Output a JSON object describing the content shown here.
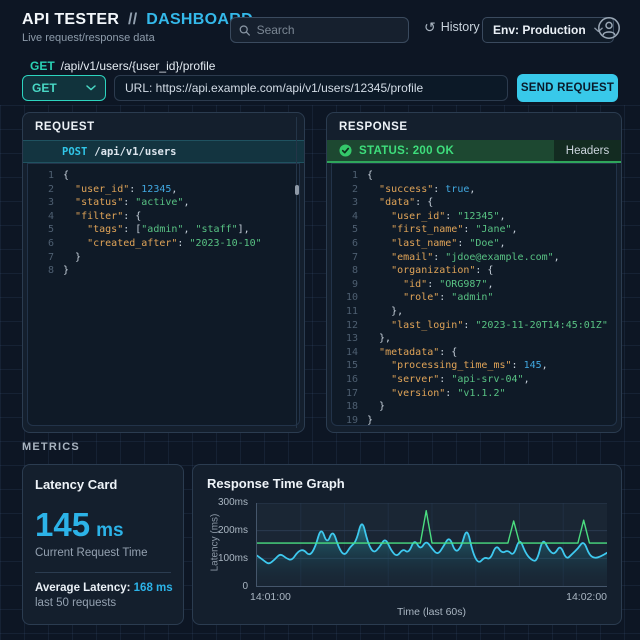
{
  "header": {
    "title_main": "API TESTER",
    "title_sep": "//",
    "title_accent": "DASHBOARD",
    "subtitle": "Live request/response data",
    "search_placeholder": "Search",
    "history_label": "History",
    "env_label": "Env: Production"
  },
  "request_bar": {
    "breadcrumb_method": "GET",
    "breadcrumb_path": "/api/v1/users/{user_id}/profile",
    "method_value": "GET",
    "url_value": "URL: https://api.example.com/api/v1/users/12345/profile",
    "send_label": "SEND REQUEST"
  },
  "request_panel": {
    "title": "REQUEST",
    "endpoint_method": "POST",
    "endpoint_path": "/api/v1/users",
    "code": [
      [
        [
          "p",
          "{"
        ]
      ],
      [
        [
          "p",
          "  "
        ],
        [
          "k",
          "\"user_id\""
        ],
        [
          "p",
          ": "
        ],
        [
          "n",
          "12345"
        ],
        [
          "p",
          ","
        ]
      ],
      [
        [
          "p",
          "  "
        ],
        [
          "k",
          "\"status\""
        ],
        [
          "p",
          ": "
        ],
        [
          "s",
          "\"active\""
        ],
        [
          "p",
          ","
        ]
      ],
      [
        [
          "p",
          "  "
        ],
        [
          "k",
          "\"filter\""
        ],
        [
          "p",
          ": {"
        ]
      ],
      [
        [
          "p",
          "    "
        ],
        [
          "k",
          "\"tags\""
        ],
        [
          "p",
          ": ["
        ],
        [
          "s",
          "\"admin\""
        ],
        [
          "p",
          ", "
        ],
        [
          "s",
          "\"staff\""
        ],
        [
          "p",
          "],"
        ]
      ],
      [
        [
          "p",
          "    "
        ],
        [
          "k",
          "\"created_after\""
        ],
        [
          "p",
          ": "
        ],
        [
          "s",
          "\"2023-10-10\""
        ]
      ],
      [
        [
          "p",
          "  }"
        ]
      ],
      [
        [
          "p",
          "}"
        ]
      ]
    ]
  },
  "response_panel": {
    "title": "RESPONSE",
    "status_label": "STATUS: 200 OK",
    "headers_label": "Headers",
    "code": [
      [
        [
          "p",
          "{"
        ]
      ],
      [
        [
          "p",
          "  "
        ],
        [
          "k",
          "\"success\""
        ],
        [
          "p",
          ": "
        ],
        [
          "n",
          "true"
        ],
        [
          "p",
          ","
        ]
      ],
      [
        [
          "p",
          "  "
        ],
        [
          "k",
          "\"data\""
        ],
        [
          "p",
          ": {"
        ]
      ],
      [
        [
          "p",
          "    "
        ],
        [
          "k",
          "\"user_id\""
        ],
        [
          "p",
          ": "
        ],
        [
          "s",
          "\"12345\""
        ],
        [
          "p",
          ","
        ]
      ],
      [
        [
          "p",
          "    "
        ],
        [
          "k",
          "\"first_name\""
        ],
        [
          "p",
          ": "
        ],
        [
          "s",
          "\"Jane\""
        ],
        [
          "p",
          ","
        ]
      ],
      [
        [
          "p",
          "    "
        ],
        [
          "k",
          "\"last_name\""
        ],
        [
          "p",
          ": "
        ],
        [
          "s",
          "\"Doe\""
        ],
        [
          "p",
          ","
        ]
      ],
      [
        [
          "p",
          "    "
        ],
        [
          "k",
          "\"email\""
        ],
        [
          "p",
          ": "
        ],
        [
          "s",
          "\"jdoe@example.com\""
        ],
        [
          "p",
          ","
        ]
      ],
      [
        [
          "p",
          "    "
        ],
        [
          "k",
          "\"organization\""
        ],
        [
          "p",
          ": {"
        ]
      ],
      [
        [
          "p",
          "      "
        ],
        [
          "k",
          "\"id\""
        ],
        [
          "p",
          ": "
        ],
        [
          "s",
          "\"ORG987\""
        ],
        [
          "p",
          ","
        ]
      ],
      [
        [
          "p",
          "      "
        ],
        [
          "k",
          "\"role\""
        ],
        [
          "p",
          ": "
        ],
        [
          "s",
          "\"admin\""
        ]
      ],
      [
        [
          "p",
          "    },"
        ]
      ],
      [
        [
          "p",
          "    "
        ],
        [
          "k",
          "\"last_login\""
        ],
        [
          "p",
          ": "
        ],
        [
          "s",
          "\"2023-11-20T14:45:01Z\""
        ]
      ],
      [
        [
          "p",
          "  },"
        ]
      ],
      [
        [
          "p",
          "  "
        ],
        [
          "k",
          "\"metadata\""
        ],
        [
          "p",
          ": {"
        ]
      ],
      [
        [
          "p",
          "    "
        ],
        [
          "k",
          "\"processing_time_ms\""
        ],
        [
          "p",
          ": "
        ],
        [
          "n",
          "145"
        ],
        [
          "p",
          ","
        ]
      ],
      [
        [
          "p",
          "    "
        ],
        [
          "k",
          "\"server\""
        ],
        [
          "p",
          ": "
        ],
        [
          "s",
          "\"api-srv-04\""
        ],
        [
          "p",
          ","
        ]
      ],
      [
        [
          "p",
          "    "
        ],
        [
          "k",
          "\"version\""
        ],
        [
          "p",
          ": "
        ],
        [
          "s",
          "\"v1.1.2\""
        ]
      ],
      [
        [
          "p",
          "  }"
        ]
      ],
      [
        [
          "p",
          "}"
        ]
      ]
    ]
  },
  "metrics": {
    "section_label": "METRICS",
    "latency_card": {
      "title": "Latency Card",
      "value": "145",
      "unit": "ms",
      "value_caption": "Current Request Time",
      "avg_label": "Average Latency:",
      "avg_value": "168 ms",
      "avg_caption": "last 50 requests"
    }
  },
  "colors": {
    "accent_cyan": "#38c9ea",
    "accent_teal": "#2dd4bf",
    "status_green": "#3ede7c",
    "key_orange": "#e0a458",
    "string_green": "#58c283",
    "number_blue": "#41a8e0"
  },
  "chart_data": {
    "type": "line",
    "title": "Response Time Graph",
    "xlabel": "Time (last 60s)",
    "ylabel": "Latency (ms)",
    "ylim": [
      0,
      300
    ],
    "yticks": [
      "300ms",
      "200ms",
      "100ms",
      "0"
    ],
    "xticks": [
      "14:01:00",
      "14:02:00"
    ],
    "grid": true,
    "legend": false,
    "average_ms": 155,
    "series": [
      {
        "name": "current-latency",
        "color": "#3ec9ef",
        "fill": "teal-gradient",
        "values": [
          110,
          95,
          78,
          95,
          118,
          100,
          92,
          125,
          132,
          108,
          140,
          215,
          150,
          205,
          138,
          108,
          142,
          160,
          245,
          155,
          118,
          140,
          175,
          128,
          105,
          135,
          118,
          170,
          130,
          165,
          135,
          112,
          145,
          180,
          120,
          140,
          215,
          118,
          80,
          105,
          95,
          150,
          118,
          130,
          108,
          175,
          120,
          95,
          88,
          175,
          130,
          112,
          150,
          95,
          115,
          135,
          165,
          110,
          100,
          108,
          120
        ]
      },
      {
        "name": "average-with-spikes",
        "color": "#4ade80",
        "values": [
          155,
          155,
          155,
          155,
          155,
          155,
          155,
          155,
          155,
          155,
          155,
          155,
          155,
          155,
          155,
          155,
          155,
          155,
          155,
          155,
          155,
          155,
          155,
          155,
          155,
          155,
          155,
          155,
          155,
          272,
          155,
          155,
          155,
          155,
          155,
          155,
          155,
          155,
          155,
          155,
          155,
          155,
          155,
          155,
          235,
          155,
          155,
          155,
          155,
          155,
          155,
          155,
          155,
          155,
          155,
          155,
          238,
          155,
          155,
          155,
          155
        ]
      }
    ]
  }
}
